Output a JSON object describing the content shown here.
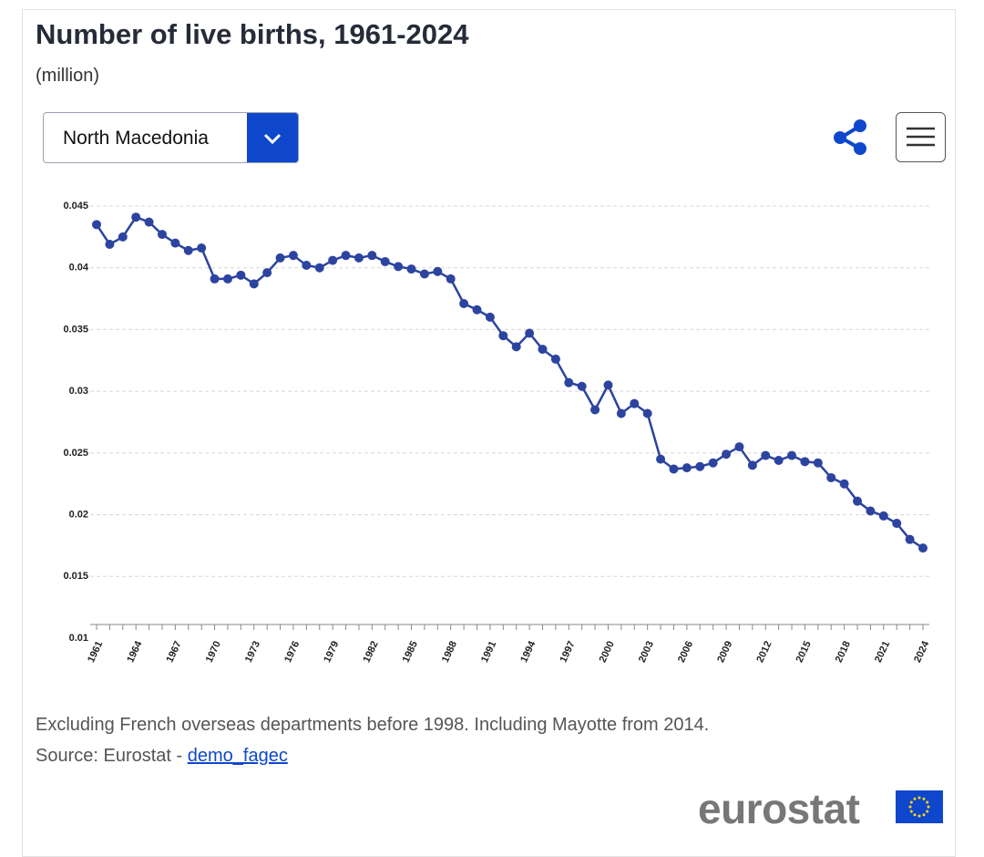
{
  "chart_data": {
    "type": "line",
    "title": "Number of live births, 1961-2024",
    "subtitle": "(million)",
    "x": [
      1961,
      1962,
      1963,
      1964,
      1965,
      1966,
      1967,
      1968,
      1969,
      1970,
      1971,
      1972,
      1973,
      1974,
      1975,
      1976,
      1977,
      1978,
      1979,
      1980,
      1981,
      1982,
      1983,
      1984,
      1985,
      1986,
      1987,
      1988,
      1989,
      1990,
      1991,
      1992,
      1993,
      1994,
      1995,
      1996,
      1997,
      1998,
      1999,
      2000,
      2001,
      2002,
      2003,
      2004,
      2005,
      2006,
      2007,
      2008,
      2009,
      2010,
      2011,
      2012,
      2013,
      2014,
      2015,
      2016,
      2017,
      2018,
      2019,
      2020,
      2021,
      2022,
      2023,
      2024
    ],
    "values": [
      0.0435,
      0.0419,
      0.0425,
      0.0441,
      0.0437,
      0.0427,
      0.042,
      0.0414,
      0.0416,
      0.0391,
      0.0391,
      0.0394,
      0.0387,
      0.0396,
      0.0408,
      0.041,
      0.0402,
      0.04,
      0.0406,
      0.041,
      0.0408,
      0.041,
      0.0405,
      0.0401,
      0.0399,
      0.0395,
      0.0397,
      0.0391,
      0.0371,
      0.0366,
      0.036,
      0.0345,
      0.0336,
      0.0347,
      0.0334,
      0.0326,
      0.0307,
      0.0304,
      0.0285,
      0.0305,
      0.0282,
      0.029,
      0.0282,
      0.0245,
      0.0237,
      0.0238,
      0.0239,
      0.0242,
      0.0249,
      0.0255,
      0.024,
      0.0248,
      0.0244,
      0.0248,
      0.0243,
      0.0242,
      0.023,
      0.0225,
      0.0211,
      0.0203,
      0.0199,
      0.0193,
      0.018,
      0.0173
    ],
    "color": "#2c44a0",
    "xlim": [
      1961,
      2024
    ],
    "xticks": [
      1961,
      1964,
      1967,
      1970,
      1973,
      1976,
      1979,
      1982,
      1985,
      1988,
      1991,
      1994,
      1997,
      2000,
      2003,
      2006,
      2009,
      2012,
      2015,
      2018,
      2021,
      2024
    ],
    "ylim": [
      0.01,
      0.045
    ],
    "yticks": [
      0.01,
      0.015,
      0.02,
      0.025,
      0.03,
      0.035,
      0.04,
      0.045
    ],
    "grid": true
  },
  "selector": "North Macedonia",
  "footnote": "Excluding French overseas departments before 1998. Including Mayotte from 2014.",
  "source_prefix": "Source: Eurostat -",
  "source_link": "demo_fagec",
  "logo": "eurostat"
}
